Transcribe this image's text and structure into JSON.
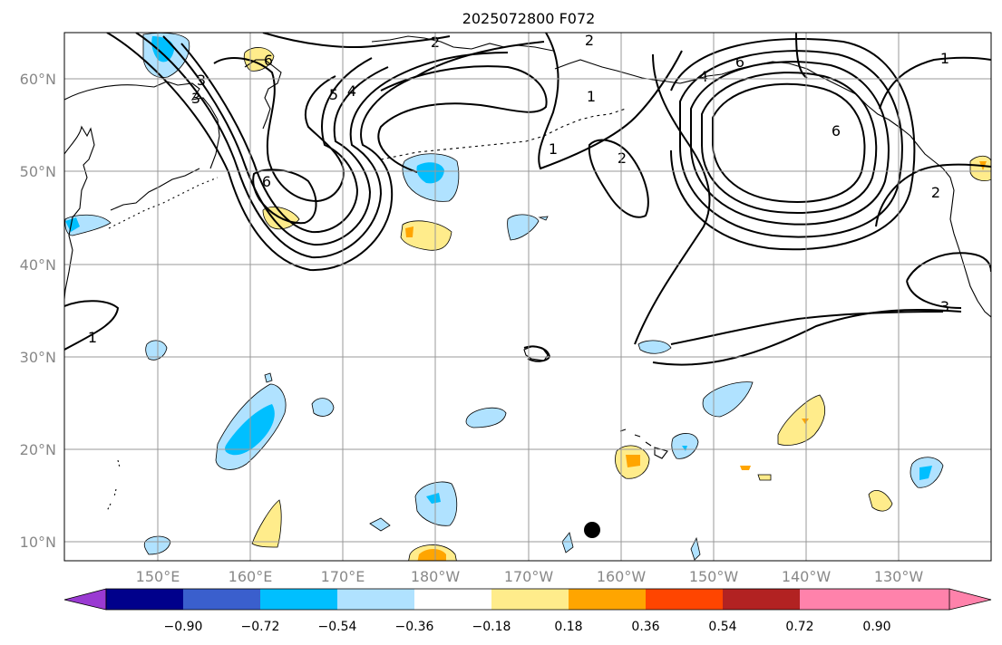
{
  "title": "2025072800 F072",
  "map": {
    "lon_labels": [
      "150°E",
      "160°E",
      "170°E",
      "180°W",
      "170°W",
      "160°W",
      "150°W",
      "140°W",
      "130°W"
    ],
    "lat_labels": [
      "60°N",
      "50°N",
      "40°N",
      "30°N",
      "20°N",
      "10°N"
    ],
    "grid": true,
    "contour_labels": [
      "2",
      "3",
      "6",
      "5",
      "4",
      "3",
      "6",
      "1",
      "2",
      "1",
      "2",
      "6",
      "6",
      "4",
      "2",
      "1",
      "3",
      "1"
    ],
    "marker": "black-dot"
  },
  "colorbar": {
    "colors": [
      "#9a3ad2",
      "#00008b",
      "#3a5fcd",
      "#00bfff",
      "#b0e2ff",
      "#ffffff",
      "#ffec8b",
      "#ffa500",
      "#ff4500",
      "#b22222",
      "#ff82ab"
    ],
    "tick_labels": [
      "−0.90",
      "−0.72",
      "−0.54",
      "−0.36",
      "−0.18",
      "0.18",
      "0.36",
      "0.54",
      "0.72",
      "0.90"
    ]
  },
  "colors": {
    "light_blue": "#b0e2ff",
    "blue": "#00bfff",
    "light_yellow": "#ffec8b",
    "orange": "#ffa500"
  }
}
